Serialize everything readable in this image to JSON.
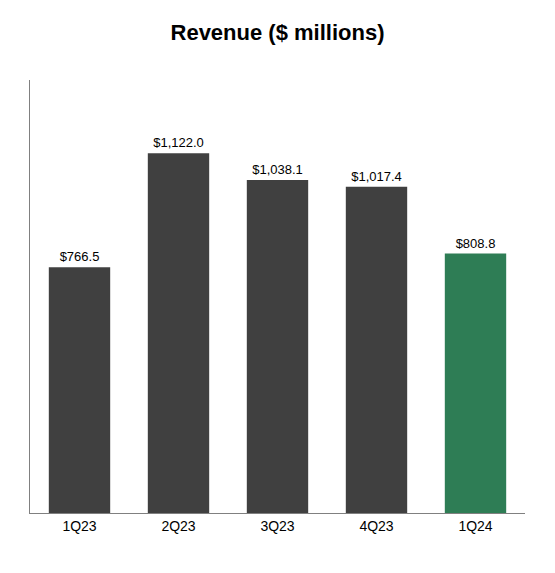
{
  "chart_data": {
    "type": "bar",
    "title": "Revenue ($ millions)",
    "categories": [
      "1Q23",
      "2Q23",
      "3Q23",
      "4Q23",
      "1Q24"
    ],
    "values": [
      766.5,
      1122.0,
      1038.1,
      1017.4,
      808.8
    ],
    "value_labels": [
      "$766.5",
      "$1,122.0",
      "$1,038.1",
      "$1,017.4",
      "$808.8"
    ],
    "data_labels": true,
    "colors": [
      "#404040",
      "#404040",
      "#404040",
      "#404040",
      "#2E7D55"
    ],
    "ylim": [
      0,
      1350
    ],
    "grid": false,
    "tick_labels": "x"
  }
}
